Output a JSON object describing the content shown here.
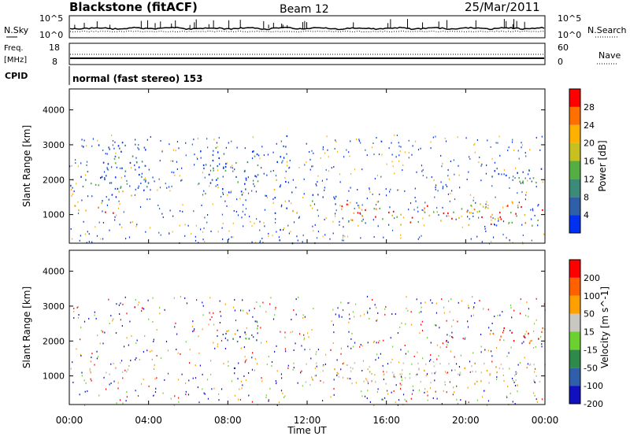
{
  "header": {
    "station": "Blackstone (fitACF)",
    "beam": "Beam 12",
    "date": "25/Mar/2011"
  },
  "strip_panels": {
    "nsky_label": "N.Sky",
    "nsky_ticks": [
      "10^5",
      "10^0"
    ],
    "nsearch_label": "N.Search",
    "nsearch_ticks": [
      "10^5",
      "10^0"
    ],
    "freq_label_1": "Freq.",
    "freq_label_2": "[MHz]",
    "freq_ticks": [
      "18",
      "8"
    ],
    "nave_label": "Nave",
    "nave_ticks": [
      "60",
      "0"
    ],
    "cpid_label": "CPID",
    "cpid_value": "normal (fast stereo) 153"
  },
  "chart_data": [
    {
      "type": "heatmap",
      "name": "power",
      "ylabel": "Slant Range [km]",
      "yticks": [
        1000,
        2000,
        3000,
        4000
      ],
      "ylim": [
        180,
        4600
      ],
      "xlim": [
        0,
        24
      ],
      "colorbar": {
        "label": "Power [dB]",
        "ticks": [
          "28",
          "24",
          "20",
          "16",
          "12",
          "8",
          "4"
        ],
        "colors": [
          "#0030f0",
          "#2e5fa8",
          "#3c8a78",
          "#55ae44",
          "#c8c020",
          "#ffb000",
          "#ff7000",
          "#ff0000"
        ]
      },
      "regions": [
        {
          "t0": 0.0,
          "t1": 2.5,
          "r0": 1050,
          "r1": 1300,
          "level": "high"
        },
        {
          "t0": 1.5,
          "t1": 3.2,
          "r0": 1300,
          "r1": 1700,
          "level": "medium"
        },
        {
          "t0": 0.5,
          "t1": 4.0,
          "r0": 1700,
          "r1": 3100,
          "level": "low"
        },
        {
          "t0": 6.5,
          "t1": 9.5,
          "r0": 1600,
          "r1": 3000,
          "level": "low"
        },
        {
          "t0": 10.2,
          "t1": 11.3,
          "r0": 200,
          "r1": 3300,
          "level": "sparse"
        },
        {
          "t0": 11.8,
          "t1": 13.5,
          "r0": 1100,
          "r1": 1600,
          "level": "medium"
        },
        {
          "t0": 13.5,
          "t1": 24.0,
          "r0": 700,
          "r1": 1400,
          "level": "high"
        },
        {
          "t0": 21.0,
          "t1": 24.0,
          "r0": 1900,
          "r1": 2400,
          "level": "low"
        }
      ]
    },
    {
      "type": "heatmap",
      "name": "velocity",
      "ylabel": "Slant Range [km]",
      "xlabel": "Time UT",
      "xticks": [
        "00:00",
        "04:00",
        "08:00",
        "12:00",
        "16:00",
        "20:00",
        "00:00"
      ],
      "yticks": [
        1000,
        2000,
        3000,
        4000
      ],
      "ylim": [
        180,
        4600
      ],
      "xlim": [
        0,
        24
      ],
      "colorbar": {
        "label": "Velocity [m s^-1]",
        "ticks": [
          "200",
          "100",
          "50",
          "15",
          "-15",
          "-50",
          "-100",
          "-200"
        ],
        "colors": [
          "#1010c0",
          "#2e5fa8",
          "#2e8a4a",
          "#6cd030",
          "#c8c8c0",
          "#ffa000",
          "#ff6000",
          "#ff0000"
        ]
      },
      "regions": [
        {
          "t0": 0.0,
          "t1": 3.0,
          "r0": 1050,
          "r1": 1450,
          "level": "ground"
        },
        {
          "t0": 3.2,
          "t1": 3.9,
          "r0": 2700,
          "r1": 3000,
          "level": "negative"
        },
        {
          "t0": 7.8,
          "t1": 9.5,
          "r0": 1900,
          "r1": 2600,
          "level": "positive"
        },
        {
          "t0": 11.8,
          "t1": 24.0,
          "r0": 750,
          "r1": 1450,
          "level": "ground"
        },
        {
          "t0": 21.0,
          "t1": 24.0,
          "r0": 1900,
          "r1": 2400,
          "level": "negative"
        }
      ]
    }
  ]
}
